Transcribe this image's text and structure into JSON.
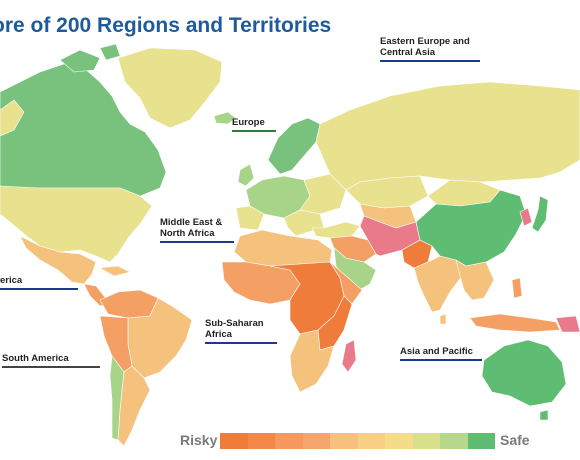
{
  "title": "ore of 200 Regions and Territories",
  "regions": {
    "eastern_europe": {
      "line1": "Eastern Europe and",
      "line2": "Central Asia",
      "underline": "#1a3a8c"
    },
    "europe": {
      "line1": "Europe",
      "underline": "#2e7d32"
    },
    "mena": {
      "line1": "Middle East &",
      "line2": "North Africa",
      "underline": "#1a3a8c"
    },
    "ssa": {
      "line1": "Sub-Saharan",
      "line2": "Africa",
      "underline": "#1a3a8c"
    },
    "asia_pacific": {
      "line1": "Asia and Pacific",
      "underline": "#1a3a8c"
    },
    "north_america": {
      "line1": "erica",
      "underline": "#1a3a8c"
    },
    "south_america": {
      "line1": "South America",
      "underline": "#444444"
    }
  },
  "legend": {
    "low_label": "Risky",
    "high_label": "Safe",
    "colors": [
      "#f07c3c",
      "#f3884a",
      "#f49960",
      "#f5a66e",
      "#f8c07e",
      "#f9cf86",
      "#f6dc8a",
      "#d9e08c",
      "#b6d88a",
      "#5ebd72"
    ]
  },
  "colors": {
    "safe": "#5ebd72",
    "light_green": "#a8d48a",
    "yellow": "#e8e18e",
    "light_orange": "#f5c27e",
    "orange": "#f4a064",
    "risky": "#f07c3c",
    "pink": "#e87a8a"
  }
}
